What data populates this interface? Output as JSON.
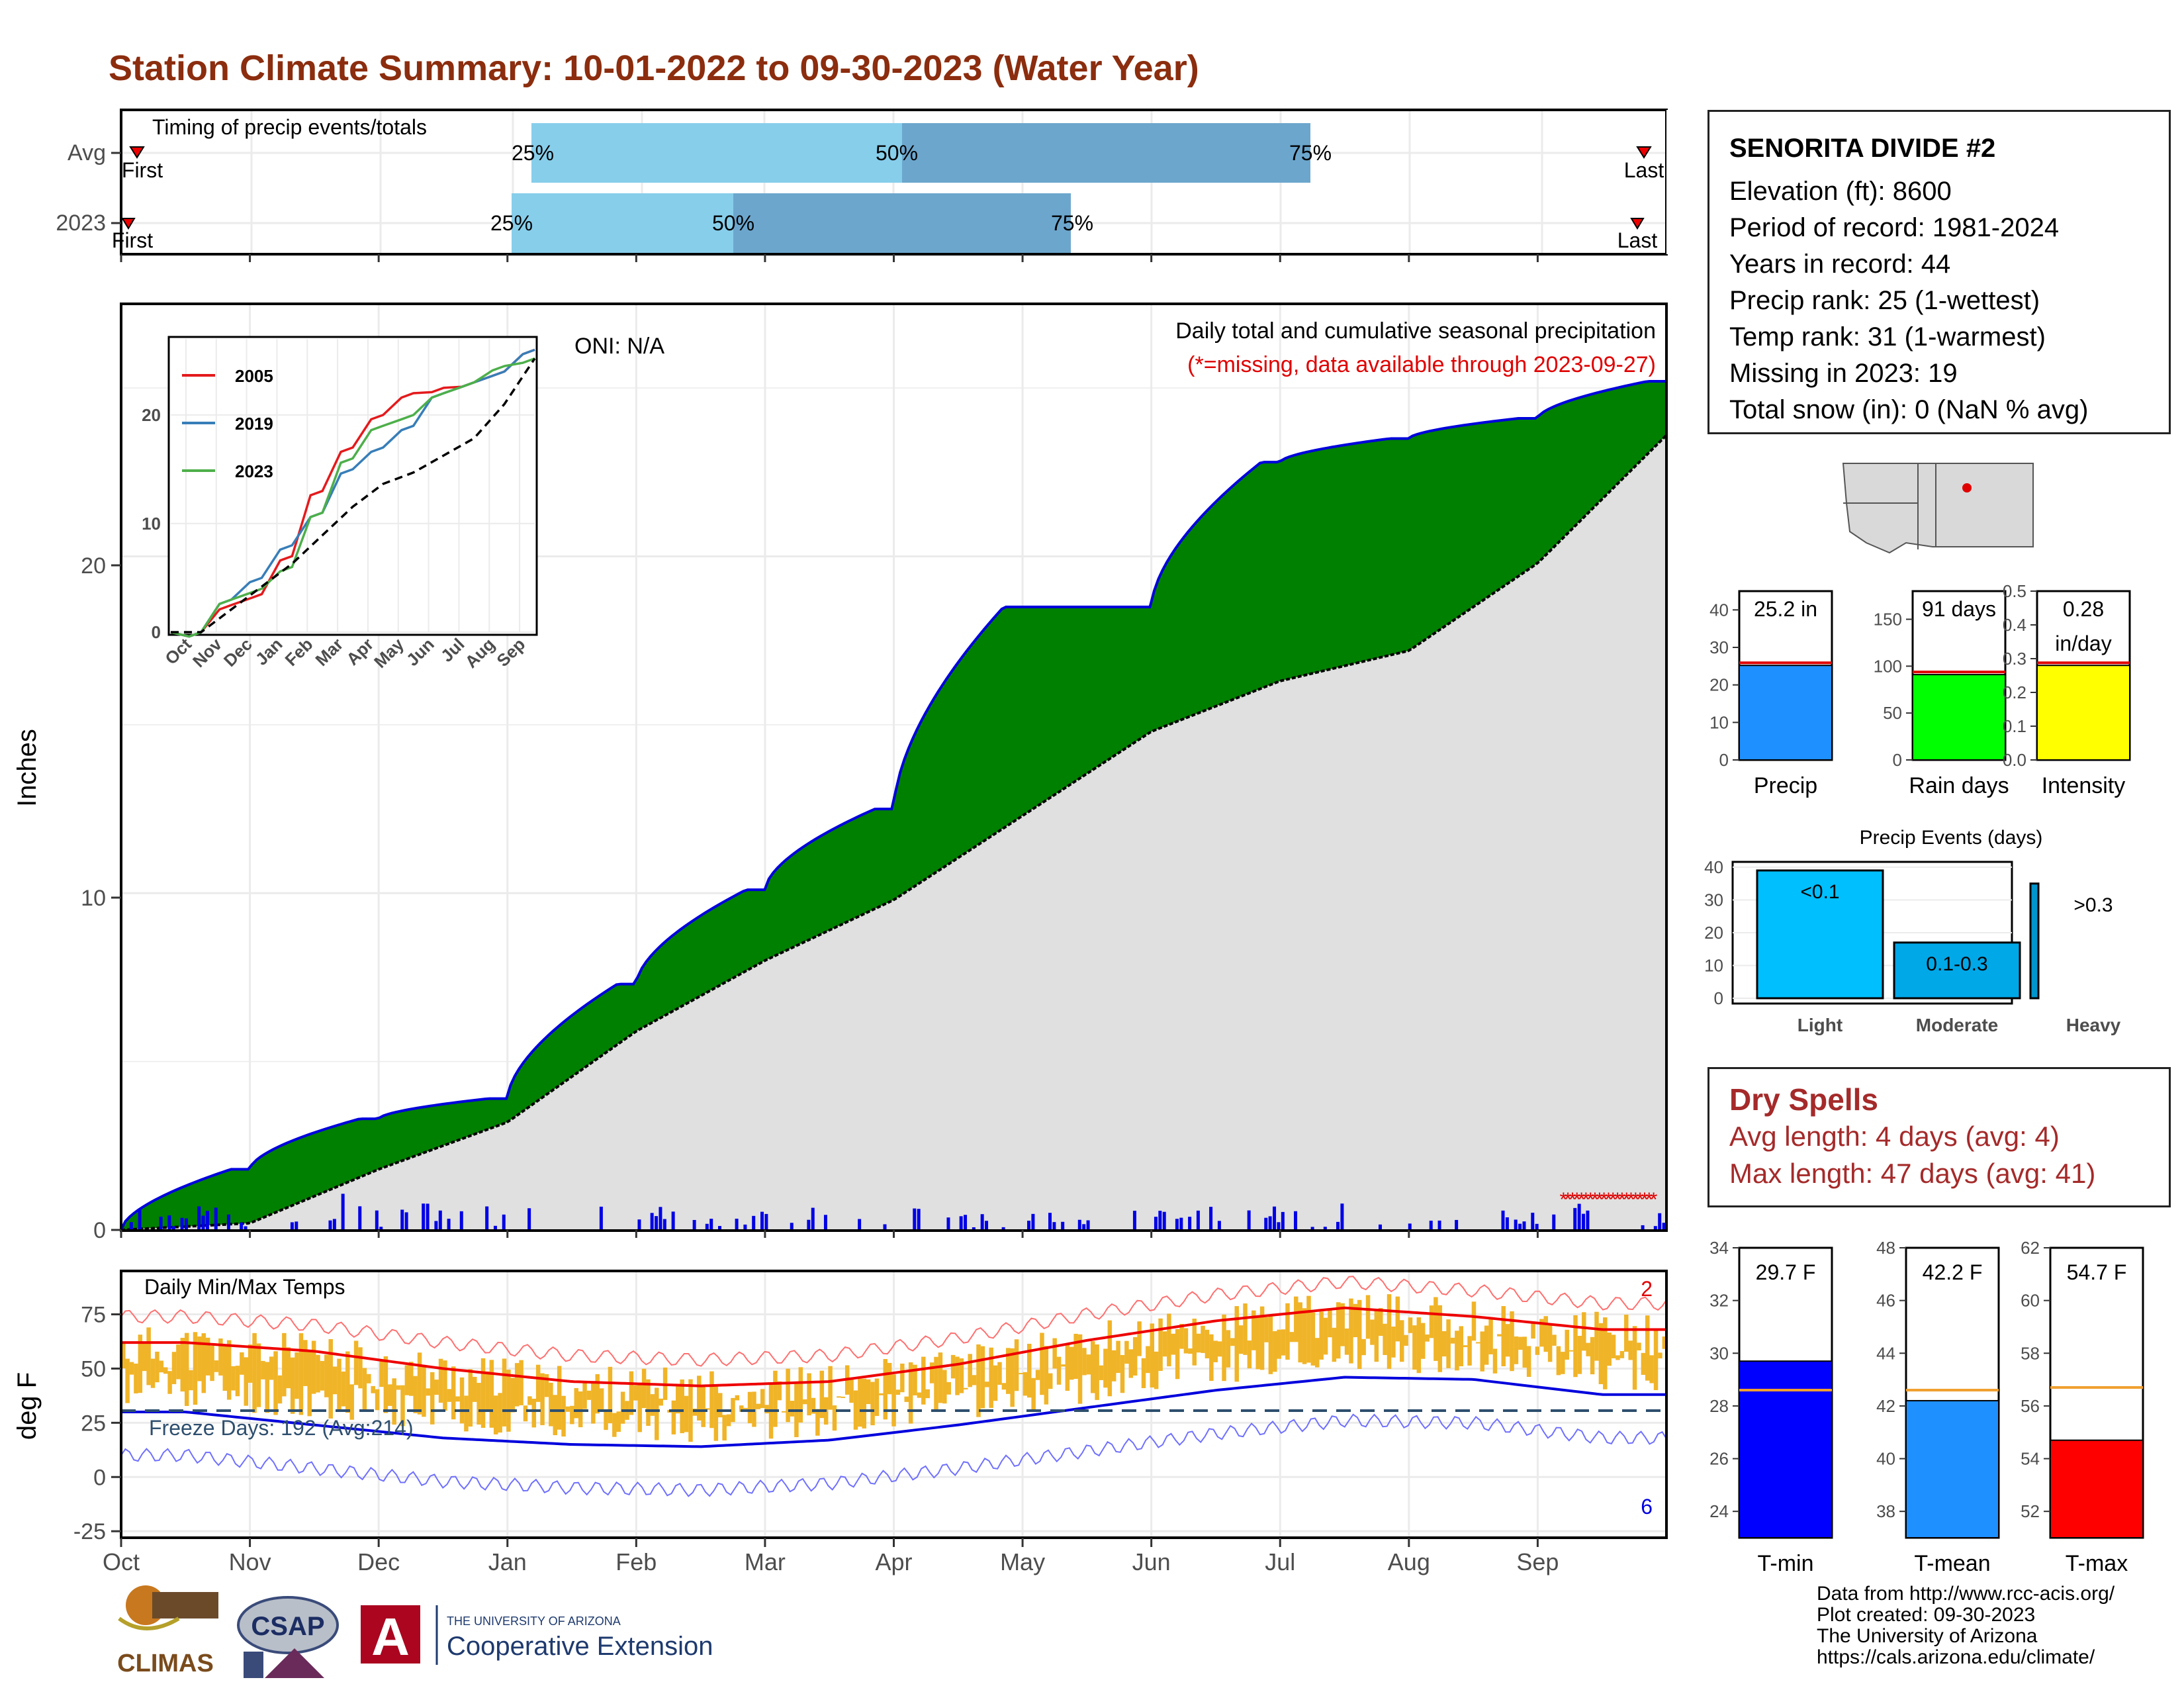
{
  "title": "Station Climate Summary: 10-01-2022 to 09-30-2023 (Water Year)",
  "timing": {
    "label": "Timing of precip events/totals",
    "rows": [
      {
        "name": "Avg",
        "first": "First",
        "last": "Last",
        "p25": "25%",
        "p50": "50%",
        "p75": "75%"
      },
      {
        "name": "2023",
        "first": "First",
        "last": "Last",
        "p25": "25%",
        "p50": "50%",
        "p75": "75%"
      }
    ]
  },
  "station": {
    "name": "SENORITA DIVIDE #2",
    "lines": [
      "Elevation (ft): 8600",
      "Period of record: 1981-2024",
      "Years in record: 44",
      "Precip rank: 25 (1-wettest)",
      "Temp rank: 31 (1-warmest)",
      "Missing in 2023: 19",
      "Total snow (in): 0 (NaN % avg)"
    ]
  },
  "main": {
    "ylabel": "Inches",
    "oni": "ONI: N/A",
    "note1": "Daily total and cumulative seasonal precipitation",
    "note2": "(*=missing, data available through 2023-09-27)",
    "yticks": [
      "0",
      "10",
      "20"
    ]
  },
  "inset": {
    "xticks": [
      "Oct",
      "Nov",
      "Dec",
      "Jan",
      "Feb",
      "Mar",
      "Apr",
      "May",
      "Jun",
      "Jul",
      "Aug",
      "Sep"
    ],
    "yticks": [
      "0",
      "10",
      "20"
    ],
    "legend": [
      {
        "name": "2005",
        "color": "#e41a1c"
      },
      {
        "name": "2019",
        "color": "#377eb8"
      },
      {
        "name": "2023",
        "color": "#4daf4a"
      }
    ]
  },
  "temps": {
    "label": "Daily Min/Max Temps",
    "freeze": "Freeze Days: 192 (Avg:214)",
    "ylabel": "deg F",
    "yticks": [
      "-25",
      "0",
      "25",
      "50",
      "75"
    ],
    "records_high": "2",
    "records_low": "6"
  },
  "months": [
    "Oct",
    "Nov",
    "Dec",
    "Jan",
    "Feb",
    "Mar",
    "Apr",
    "May",
    "Jun",
    "Jul",
    "Aug",
    "Sep"
  ],
  "summary_bars": [
    {
      "label": "Precip",
      "value_text": "25.2 in",
      "yticks": [
        "0",
        "10",
        "20",
        "30",
        "40"
      ]
    },
    {
      "label": "Rain days",
      "value_text": "91 days",
      "yticks": [
        "0",
        "50",
        "100",
        "150"
      ]
    },
    {
      "label": "Intensity",
      "value_text": "0.28",
      "value_text2": "in/day",
      "yticks": [
        "0.0",
        "0.1",
        "0.2",
        "0.3",
        "0.4",
        "0.5"
      ]
    }
  ],
  "events": {
    "title": "Precip Events (days)",
    "yticks": [
      "0",
      "10",
      "20",
      "30",
      "40"
    ],
    "cats": [
      "Light",
      "Moderate",
      "Heavy"
    ],
    "labels": [
      "<0.1",
      "0.1-0.3",
      ">0.3"
    ]
  },
  "dry": {
    "title": "Dry Spells",
    "avg": "Avg length: 4 days (avg: 4)",
    "max": "Max length: 47 days (avg: 41)"
  },
  "temp_bars": [
    {
      "label": "T-min",
      "value_text": "29.7 F",
      "yticks": [
        "24",
        "26",
        "28",
        "30",
        "32",
        "34"
      ]
    },
    {
      "label": "T-mean",
      "value_text": "42.2 F",
      "yticks": [
        "38",
        "40",
        "42",
        "44",
        "46",
        "48"
      ]
    },
    {
      "label": "T-max",
      "value_text": "54.7 F",
      "yticks": [
        "52",
        "54",
        "56",
        "58",
        "60",
        "62"
      ]
    }
  ],
  "credits": [
    "Data from http://www.rcc-acis.org/",
    "Plot created: 09-30-2023",
    "The University of Arizona",
    "https://cals.arizona.edu/climate/"
  ],
  "logos": {
    "climas": "CLIMAS",
    "csap": "CSAP",
    "ua_small": "THE UNIVERSITY OF ARIZONA",
    "ua_big": "Cooperative Extension"
  },
  "chart_data": [
    {
      "type": "area",
      "title": "Daily total and cumulative seasonal precipitation",
      "ylabel": "Inches",
      "ylim": [
        0,
        27.5
      ],
      "x": [
        "Oct",
        "Nov",
        "Dec",
        "Jan",
        "Feb",
        "Mar",
        "Apr",
        "May",
        "Jun",
        "Jul",
        "Aug",
        "Sep"
      ],
      "series": [
        {
          "name": "2023",
          "values": [
            1.8,
            3.3,
            3.9,
            7.3,
            10.1,
            12.5,
            18.5,
            18.5,
            22.8,
            23.5,
            24.1,
            25.2
          ]
        },
        {
          "values": [
            0.2,
            1.8,
            3.2,
            5.9,
            8.0,
            9.8,
            12.3,
            14.8,
            16.3,
            17.2,
            19.8,
            23.6
          ]
        }
      ],
      "grid": true
    },
    {
      "type": "line",
      "ylim": [
        0,
        27
      ],
      "x": [
        "Oct",
        "Nov",
        "Dec",
        "Jan",
        "Feb",
        "Mar",
        "Apr",
        "May",
        "Jun",
        "Jul",
        "Aug",
        "Sep"
      ],
      "series": [
        {
          "name": "2005",
          "values": [
            0,
            2.5,
            3.5,
            7,
            13,
            17,
            20,
            22,
            22.5,
            23,
            24,
            26
          ]
        },
        {
          "name": "2019",
          "values": [
            0,
            3,
            5,
            8,
            11,
            15,
            17,
            19,
            22,
            23,
            24,
            26
          ]
        },
        {
          "name": "2023",
          "values": [
            0,
            3,
            4,
            6,
            11,
            16,
            19,
            20,
            22,
            23,
            24.5,
            25.2
          ]
        }
      ]
    },
    {
      "type": "line",
      "ylabel": "deg F",
      "ylim": [
        -28,
        95
      ],
      "x": [
        "Oct",
        "Nov",
        "Dec",
        "Jan",
        "Feb",
        "Mar",
        "Apr",
        "May",
        "Jun",
        "Jul",
        "Aug",
        "Sep"
      ],
      "series": [
        {
          "values": [
            62,
            58,
            50,
            44,
            42,
            44,
            52,
            63,
            72,
            78,
            74,
            68
          ]
        },
        {
          "values": [
            30,
            24,
            18,
            15,
            14,
            17,
            24,
            32,
            40,
            46,
            45,
            38
          ]
        }
      ]
    },
    {
      "type": "bar",
      "categories": [
        "Precip"
      ],
      "values": [
        25.2
      ],
      "ylim": [
        0,
        45
      ]
    },
    {
      "type": "bar",
      "categories": [
        "Rain days"
      ],
      "values": [
        91
      ],
      "ylim": [
        0,
        180
      ]
    },
    {
      "type": "bar",
      "categories": [
        "Intensity"
      ],
      "values": [
        0.28
      ],
      "ylim": [
        0,
        0.5
      ]
    },
    {
      "type": "bar",
      "title": "Precip Events (days)",
      "categories": [
        "Light",
        "Moderate",
        "Heavy"
      ],
      "values": [
        39,
        17,
        35
      ],
      "ylim": [
        0,
        40
      ]
    },
    {
      "type": "bar",
      "categories": [
        "T-min"
      ],
      "values": [
        29.7
      ],
      "ylim": [
        23,
        34
      ]
    },
    {
      "type": "bar",
      "categories": [
        "T-mean"
      ],
      "values": [
        42.2
      ],
      "ylim": [
        37,
        48
      ]
    },
    {
      "type": "bar",
      "categories": [
        "T-max"
      ],
      "values": [
        54.7
      ],
      "ylim": [
        51,
        62
      ]
    }
  ]
}
